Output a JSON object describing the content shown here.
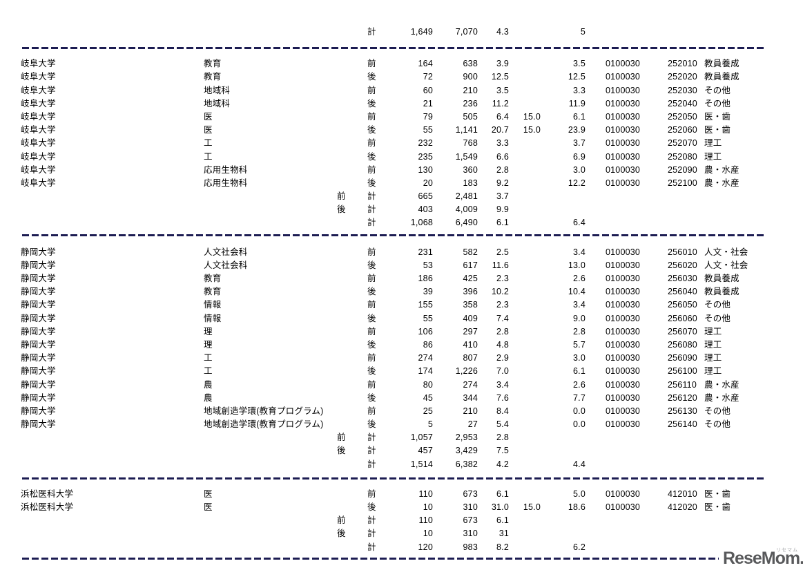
{
  "colors": {
    "separator": "#1c1c52",
    "text": "#000000",
    "logo": "#58595b"
  },
  "logo": {
    "text": "ReseMom.",
    "ruby": "リセマム"
  },
  "blocks": [
    {
      "name": "grand-total-block",
      "css": "b0",
      "sep_css": "s0",
      "rows": [
        {
          "univ": "",
          "fac": "",
          "sub": "",
          "stage": "計",
          "n1": "1,649",
          "n2": "7,070",
          "ratio": "4.3",
          "cap": "",
          "prev": "5",
          "code1": "",
          "code2": "",
          "cat": ""
        }
      ]
    },
    {
      "name": "gifu-university-block",
      "css": "b1",
      "sep_css": "s1",
      "rows": [
        {
          "univ": "岐阜大学",
          "fac": "教育",
          "sub": "",
          "stage": "前",
          "n1": "164",
          "n2": "638",
          "ratio": "3.9",
          "cap": "",
          "prev": "3.5",
          "code1": "0100030",
          "code2": "252010",
          "cat": "教員養成"
        },
        {
          "univ": "岐阜大学",
          "fac": "教育",
          "sub": "",
          "stage": "後",
          "n1": "72",
          "n2": "900",
          "ratio": "12.5",
          "cap": "",
          "prev": "12.5",
          "code1": "0100030",
          "code2": "252020",
          "cat": "教員養成"
        },
        {
          "univ": "岐阜大学",
          "fac": "地域科",
          "sub": "",
          "stage": "前",
          "n1": "60",
          "n2": "210",
          "ratio": "3.5",
          "cap": "",
          "prev": "3.3",
          "code1": "0100030",
          "code2": "252030",
          "cat": "その他"
        },
        {
          "univ": "岐阜大学",
          "fac": "地域科",
          "sub": "",
          "stage": "後",
          "n1": "21",
          "n2": "236",
          "ratio": "11.2",
          "cap": "",
          "prev": "11.9",
          "code1": "0100030",
          "code2": "252040",
          "cat": "その他"
        },
        {
          "univ": "岐阜大学",
          "fac": "医",
          "sub": "",
          "stage": "前",
          "n1": "79",
          "n2": "505",
          "ratio": "6.4",
          "cap": "15.0",
          "prev": "6.1",
          "code1": "0100030",
          "code2": "252050",
          "cat": "医・歯"
        },
        {
          "univ": "岐阜大学",
          "fac": "医",
          "sub": "",
          "stage": "後",
          "n1": "55",
          "n2": "1,141",
          "ratio": "20.7",
          "cap": "15.0",
          "prev": "23.9",
          "code1": "0100030",
          "code2": "252060",
          "cat": "医・歯"
        },
        {
          "univ": "岐阜大学",
          "fac": "工",
          "sub": "",
          "stage": "前",
          "n1": "232",
          "n2": "768",
          "ratio": "3.3",
          "cap": "",
          "prev": "3.7",
          "code1": "0100030",
          "code2": "252070",
          "cat": "理工"
        },
        {
          "univ": "岐阜大学",
          "fac": "工",
          "sub": "",
          "stage": "後",
          "n1": "235",
          "n2": "1,549",
          "ratio": "6.6",
          "cap": "",
          "prev": "6.9",
          "code1": "0100030",
          "code2": "252080",
          "cat": "理工"
        },
        {
          "univ": "岐阜大学",
          "fac": "応用生物科",
          "sub": "",
          "stage": "前",
          "n1": "130",
          "n2": "360",
          "ratio": "2.8",
          "cap": "",
          "prev": "3.0",
          "code1": "0100030",
          "code2": "252090",
          "cat": "農・水産"
        },
        {
          "univ": "岐阜大学",
          "fac": "応用生物科",
          "sub": "",
          "stage": "後",
          "n1": "20",
          "n2": "183",
          "ratio": "9.2",
          "cap": "",
          "prev": "12.2",
          "code1": "0100030",
          "code2": "252100",
          "cat": "農・水産"
        },
        {
          "univ": "",
          "fac": "",
          "sub": "前",
          "stage": "計",
          "n1": "665",
          "n2": "2,481",
          "ratio": "3.7",
          "cap": "",
          "prev": "",
          "code1": "",
          "code2": "",
          "cat": ""
        },
        {
          "univ": "",
          "fac": "",
          "sub": "後",
          "stage": "計",
          "n1": "403",
          "n2": "4,009",
          "ratio": "9.9",
          "cap": "",
          "prev": "",
          "code1": "",
          "code2": "",
          "cat": ""
        },
        {
          "univ": "",
          "fac": "",
          "sub": "",
          "stage": "計",
          "n1": "1,068",
          "n2": "6,490",
          "ratio": "6.1",
          "cap": "",
          "prev": "6.4",
          "code1": "",
          "code2": "",
          "cat": ""
        }
      ]
    },
    {
      "name": "shizuoka-university-block",
      "css": "b2",
      "sep_css": "s2",
      "rows": [
        {
          "univ": "静岡大学",
          "fac": "人文社会科",
          "sub": "",
          "stage": "前",
          "n1": "231",
          "n2": "582",
          "ratio": "2.5",
          "cap": "",
          "prev": "3.4",
          "code1": "0100030",
          "code2": "256010",
          "cat": "人文・社会"
        },
        {
          "univ": "静岡大学",
          "fac": "人文社会科",
          "sub": "",
          "stage": "後",
          "n1": "53",
          "n2": "617",
          "ratio": "11.6",
          "cap": "",
          "prev": "13.0",
          "code1": "0100030",
          "code2": "256020",
          "cat": "人文・社会"
        },
        {
          "univ": "静岡大学",
          "fac": "教育",
          "sub": "",
          "stage": "前",
          "n1": "186",
          "n2": "425",
          "ratio": "2.3",
          "cap": "",
          "prev": "2.6",
          "code1": "0100030",
          "code2": "256030",
          "cat": "教員養成"
        },
        {
          "univ": "静岡大学",
          "fac": "教育",
          "sub": "",
          "stage": "後",
          "n1": "39",
          "n2": "396",
          "ratio": "10.2",
          "cap": "",
          "prev": "10.4",
          "code1": "0100030",
          "code2": "256040",
          "cat": "教員養成"
        },
        {
          "univ": "静岡大学",
          "fac": "情報",
          "sub": "",
          "stage": "前",
          "n1": "155",
          "n2": "358",
          "ratio": "2.3",
          "cap": "",
          "prev": "3.4",
          "code1": "0100030",
          "code2": "256050",
          "cat": "その他"
        },
        {
          "univ": "静岡大学",
          "fac": "情報",
          "sub": "",
          "stage": "後",
          "n1": "55",
          "n2": "409",
          "ratio": "7.4",
          "cap": "",
          "prev": "9.0",
          "code1": "0100030",
          "code2": "256060",
          "cat": "その他"
        },
        {
          "univ": "静岡大学",
          "fac": "理",
          "sub": "",
          "stage": "前",
          "n1": "106",
          "n2": "297",
          "ratio": "2.8",
          "cap": "",
          "prev": "2.8",
          "code1": "0100030",
          "code2": "256070",
          "cat": "理工"
        },
        {
          "univ": "静岡大学",
          "fac": "理",
          "sub": "",
          "stage": "後",
          "n1": "86",
          "n2": "410",
          "ratio": "4.8",
          "cap": "",
          "prev": "5.7",
          "code1": "0100030",
          "code2": "256080",
          "cat": "理工"
        },
        {
          "univ": "静岡大学",
          "fac": "工",
          "sub": "",
          "stage": "前",
          "n1": "274",
          "n2": "807",
          "ratio": "2.9",
          "cap": "",
          "prev": "3.0",
          "code1": "0100030",
          "code2": "256090",
          "cat": "理工"
        },
        {
          "univ": "静岡大学",
          "fac": "工",
          "sub": "",
          "stage": "後",
          "n1": "174",
          "n2": "1,226",
          "ratio": "7.0",
          "cap": "",
          "prev": "6.1",
          "code1": "0100030",
          "code2": "256100",
          "cat": "理工"
        },
        {
          "univ": "静岡大学",
          "fac": "農",
          "sub": "",
          "stage": "前",
          "n1": "80",
          "n2": "274",
          "ratio": "3.4",
          "cap": "",
          "prev": "2.6",
          "code1": "0100030",
          "code2": "256110",
          "cat": "農・水産"
        },
        {
          "univ": "静岡大学",
          "fac": "農",
          "sub": "",
          "stage": "後",
          "n1": "45",
          "n2": "344",
          "ratio": "7.6",
          "cap": "",
          "prev": "7.7",
          "code1": "0100030",
          "code2": "256120",
          "cat": "農・水産"
        },
        {
          "univ": "静岡大学",
          "fac": "地域創造学環(教育プログラム)",
          "sub": "",
          "stage": "前",
          "n1": "25",
          "n2": "210",
          "ratio": "8.4",
          "cap": "",
          "prev": "0.0",
          "code1": "0100030",
          "code2": "256130",
          "cat": "その他"
        },
        {
          "univ": "静岡大学",
          "fac": "地域創造学環(教育プログラム)",
          "sub": "",
          "stage": "後",
          "n1": "5",
          "n2": "27",
          "ratio": "5.4",
          "cap": "",
          "prev": "0.0",
          "code1": "0100030",
          "code2": "256140",
          "cat": "その他"
        },
        {
          "univ": "",
          "fac": "",
          "sub": "前",
          "stage": "計",
          "n1": "1,057",
          "n2": "2,953",
          "ratio": "2.8",
          "cap": "",
          "prev": "",
          "code1": "",
          "code2": "",
          "cat": ""
        },
        {
          "univ": "",
          "fac": "",
          "sub": "後",
          "stage": "計",
          "n1": "457",
          "n2": "3,429",
          "ratio": "7.5",
          "cap": "",
          "prev": "",
          "code1": "",
          "code2": "",
          "cat": ""
        },
        {
          "univ": "",
          "fac": "",
          "sub": "",
          "stage": "計",
          "n1": "1,514",
          "n2": "6,382",
          "ratio": "4.2",
          "cap": "",
          "prev": "4.4",
          "code1": "",
          "code2": "",
          "cat": ""
        }
      ]
    },
    {
      "name": "hamamatsu-medical-university-block",
      "css": "b3",
      "sep_css": "s3",
      "rows": [
        {
          "univ": "浜松医科大学",
          "fac": "医",
          "sub": "",
          "stage": "前",
          "n1": "110",
          "n2": "673",
          "ratio": "6.1",
          "cap": "",
          "prev": "5.0",
          "code1": "0100030",
          "code2": "412010",
          "cat": "医・歯"
        },
        {
          "univ": "浜松医科大学",
          "fac": "医",
          "sub": "",
          "stage": "後",
          "n1": "10",
          "n2": "310",
          "ratio": "31.0",
          "cap": "15.0",
          "prev": "18.6",
          "code1": "0100030",
          "code2": "412020",
          "cat": "医・歯"
        },
        {
          "univ": "",
          "fac": "",
          "sub": "前",
          "stage": "計",
          "n1": "110",
          "n2": "673",
          "ratio": "6.1",
          "cap": "",
          "prev": "",
          "code1": "",
          "code2": "",
          "cat": ""
        },
        {
          "univ": "",
          "fac": "",
          "sub": "後",
          "stage": "計",
          "n1": "10",
          "n2": "310",
          "ratio": "31",
          "cap": "",
          "prev": "",
          "code1": "",
          "code2": "",
          "cat": ""
        },
        {
          "univ": "",
          "fac": "",
          "sub": "",
          "stage": "計",
          "n1": "120",
          "n2": "983",
          "ratio": "8.2",
          "cap": "",
          "prev": "6.2",
          "code1": "",
          "code2": "",
          "cat": ""
        }
      ]
    }
  ]
}
